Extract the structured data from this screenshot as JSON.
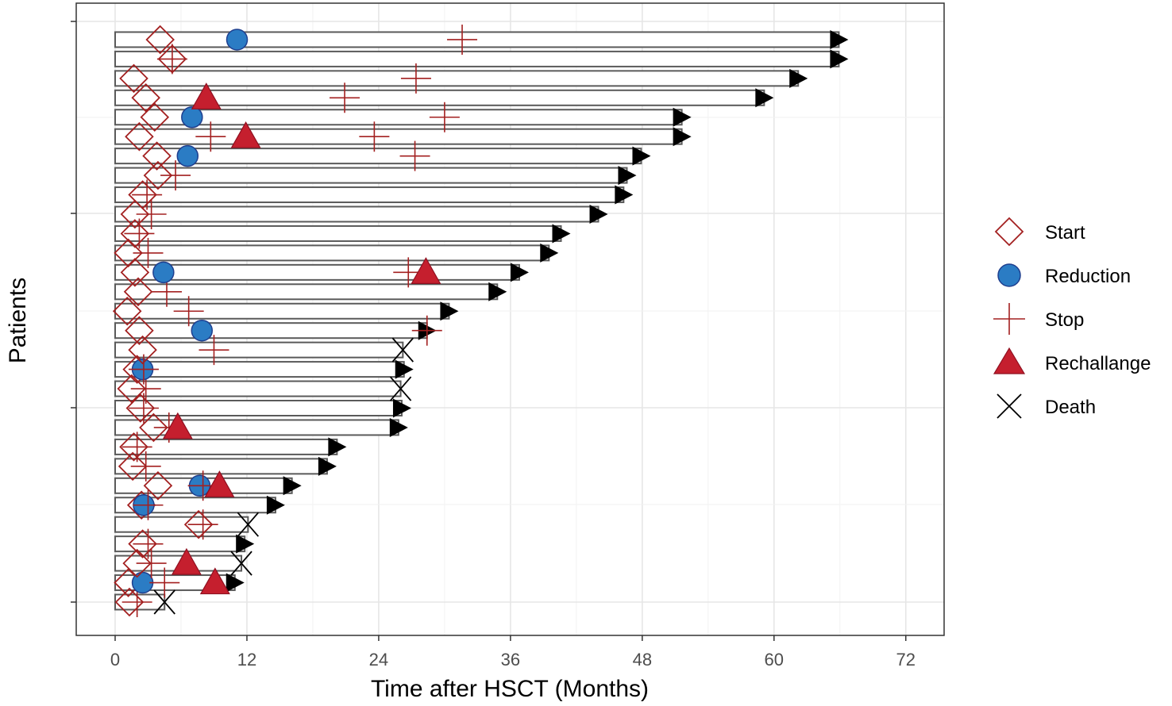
{
  "chart_data": {
    "type": "swimmer",
    "xlabel": "Time after HSCT (Months)",
    "ylabel": "Patients",
    "xlim": [
      -3.5,
      75.5
    ],
    "x_ticks": [
      0,
      12,
      24,
      36,
      48,
      60,
      72
    ],
    "x_tick_labels": [
      "0",
      "12",
      "24",
      "36",
      "48",
      "60",
      "72"
    ],
    "legend": {
      "position": "right",
      "entries": [
        {
          "key": "start",
          "label": "Start"
        },
        {
          "key": "reduction",
          "label": "Reduction"
        },
        {
          "key": "stop",
          "label": "Stop"
        },
        {
          "key": "rechallenge",
          "label": "Rechallange"
        },
        {
          "key": "death",
          "label": "Death"
        }
      ]
    },
    "colors": {
      "start": "#a32020",
      "reduction": "#2b7cc4",
      "reduction_edge": "#1f3f8f",
      "stop": "#a32020",
      "rechallenge": "#c51f2e",
      "death": "#000000",
      "bar": "#5a5a5a",
      "panel_border": "#333333",
      "grid_major": "#e6e6e6",
      "grid_minor": "#f2f2f2",
      "arrow": "#000000"
    },
    "patients": [
      {
        "id": 1,
        "end": 4.5,
        "arrow": false,
        "death": 4.5,
        "start": 1.3,
        "stop": [
          2.0
        ]
      },
      {
        "id": 2,
        "end": 10.9,
        "arrow": true,
        "start": 1.2,
        "reduction": [
          2.5
        ],
        "stop": [
          4.5
        ],
        "rechallenge": [
          9.1
        ]
      },
      {
        "id": 3,
        "end": 11.5,
        "arrow": false,
        "death": 11.5,
        "start": 2.0,
        "stop": [
          3.3
        ],
        "rechallenge": [
          6.5
        ]
      },
      {
        "id": 4,
        "end": 11.8,
        "arrow": true,
        "start": 2.5,
        "stop": [
          3.0
        ]
      },
      {
        "id": 5,
        "end": 12.1,
        "arrow": false,
        "death": 12.1,
        "start": 7.6,
        "stop": [
          8.0
        ]
      },
      {
        "id": 6,
        "end": 14.6,
        "arrow": true,
        "start": 2.4,
        "reduction": [
          2.6
        ],
        "stop": [
          3.0
        ]
      },
      {
        "id": 7,
        "end": 16.1,
        "arrow": true,
        "start": 3.9,
        "reduction": [
          7.7
        ],
        "stop": [
          8.0
        ],
        "rechallenge": [
          9.5
        ]
      },
      {
        "id": 8,
        "end": 19.3,
        "arrow": true,
        "start": 1.6,
        "stop": [
          2.8
        ]
      },
      {
        "id": 9,
        "end": 20.2,
        "arrow": true,
        "start": 1.7,
        "stop": [
          2.0
        ]
      },
      {
        "id": 10,
        "end": 25.8,
        "arrow": true,
        "start": 3.5,
        "stop": [
          4.9
        ],
        "rechallenge": [
          5.7
        ]
      },
      {
        "id": 11,
        "end": 26.1,
        "arrow": true,
        "start": 2.3,
        "stop": [
          2.6
        ]
      },
      {
        "id": 12,
        "end": 26.0,
        "arrow": false,
        "death": 26.0,
        "start": 1.5,
        "stop": [
          2.8
        ]
      },
      {
        "id": 13,
        "end": 26.3,
        "arrow": true,
        "start": 2.0,
        "reduction": [
          2.5
        ],
        "stop": [
          2.6
        ]
      },
      {
        "id": 14,
        "end": 26.2,
        "arrow": false,
        "death": 26.2,
        "start": 2.5,
        "stop": [
          9.0
        ]
      },
      {
        "id": 15,
        "end": 28.4,
        "arrow": true,
        "start": 2.2,
        "reduction": [
          7.9
        ],
        "stop": [
          28.4
        ]
      },
      {
        "id": 16,
        "end": 30.4,
        "arrow": true,
        "start": 1.1,
        "stop": [
          6.7
        ]
      },
      {
        "id": 17,
        "end": 34.8,
        "arrow": true,
        "start": 2.1,
        "stop": [
          4.7
        ]
      },
      {
        "id": 18,
        "end": 36.8,
        "arrow": true,
        "start": 1.8,
        "reduction": [
          4.4
        ],
        "stop": [
          26.7
        ],
        "rechallenge": [
          28.3
        ]
      },
      {
        "id": 19,
        "end": 39.5,
        "arrow": true,
        "start": 1.2,
        "stop": [
          3.0
        ]
      },
      {
        "id": 20,
        "end": 40.6,
        "arrow": true,
        "start": 1.8,
        "stop": [
          2.2
        ]
      },
      {
        "id": 21,
        "end": 44.0,
        "arrow": true,
        "start": 1.8,
        "stop": [
          3.3
        ]
      },
      {
        "id": 22,
        "end": 46.3,
        "arrow": true,
        "start": 2.5,
        "stop": [
          2.9
        ]
      },
      {
        "id": 23,
        "end": 46.6,
        "arrow": true,
        "start": 3.9,
        "stop": [
          5.5
        ]
      },
      {
        "id": 24,
        "end": 47.9,
        "arrow": true,
        "start": 3.8,
        "reduction": [
          6.6
        ],
        "stop": [
          27.3
        ]
      },
      {
        "id": 25,
        "end": 51.6,
        "arrow": true,
        "start": 2.2,
        "stop": [
          8.7,
          23.6
        ],
        "rechallenge": [
          11.9
        ]
      },
      {
        "id": 26,
        "end": 51.6,
        "arrow": true,
        "start": 3.6,
        "reduction": [
          7.0
        ],
        "stop": [
          30.0
        ]
      },
      {
        "id": 27,
        "end": 59.1,
        "arrow": true,
        "start": 2.8,
        "stop": [
          20.9
        ],
        "rechallenge": [
          8.3
        ]
      },
      {
        "id": 28,
        "end": 62.2,
        "arrow": true,
        "start": 1.7,
        "stop": [
          27.4
        ]
      },
      {
        "id": 29,
        "end": 65.9,
        "arrow": true,
        "start": 5.2,
        "stop": [
          5.2
        ]
      },
      {
        "id": 30,
        "end": 65.9,
        "arrow": true,
        "start": 4.1,
        "reduction": [
          11.1
        ],
        "stop": [
          31.6
        ]
      }
    ]
  }
}
